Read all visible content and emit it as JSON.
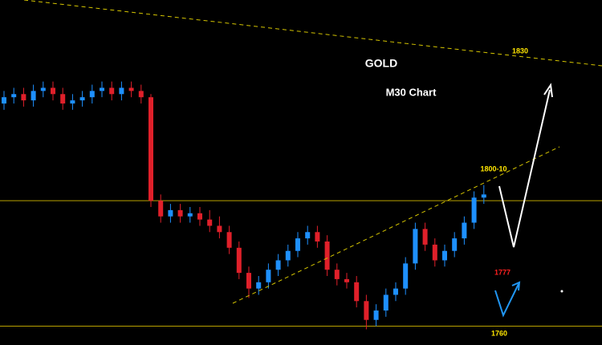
{
  "chart_data": {
    "type": "candlestick",
    "title": "GOLD",
    "subtitle": "M30 Chart",
    "ylim": [
      1754,
      1864
    ],
    "up_color": "#1e90ff",
    "down_color": "#e0202a",
    "hlines": [
      1800,
      1760
    ],
    "annotations": [
      "1830",
      "1800-10",
      "1777",
      "1760"
    ],
    "series": {
      "open": [
        1831,
        1833,
        1834,
        1832,
        1835,
        1836,
        1834,
        1831,
        1832,
        1833,
        1835,
        1836,
        1834,
        1836,
        1835,
        1833,
        1800,
        1795,
        1797,
        1795,
        1796,
        1794,
        1792,
        1790,
        1785,
        1777,
        1772,
        1774,
        1778,
        1781,
        1784,
        1788,
        1790,
        1787,
        1778,
        1775,
        1774,
        1768,
        1762,
        1765,
        1770,
        1772,
        1780,
        1791,
        1786,
        1781,
        1784,
        1788,
        1793,
        1801
      ],
      "high": [
        1835,
        1836,
        1836,
        1837,
        1838,
        1838,
        1836,
        1834,
        1835,
        1837,
        1838,
        1838,
        1838,
        1838,
        1837,
        1834,
        1802,
        1799,
        1799,
        1798,
        1798,
        1797,
        1795,
        1792,
        1787,
        1779,
        1776,
        1780,
        1783,
        1786,
        1790,
        1792,
        1792,
        1789,
        1780,
        1777,
        1776,
        1770,
        1767,
        1772,
        1774,
        1782,
        1793,
        1793,
        1788,
        1786,
        1790,
        1795,
        1803,
        1805
      ],
      "low": [
        1829,
        1831,
        1830,
        1830,
        1833,
        1832,
        1829,
        1829,
        1830,
        1831,
        1833,
        1832,
        1832,
        1833,
        1831,
        1798,
        1793,
        1793,
        1793,
        1793,
        1792,
        1790,
        1788,
        1783,
        1775,
        1769,
        1770,
        1772,
        1776,
        1779,
        1782,
        1786,
        1785,
        1776,
        1773,
        1772,
        1766,
        1759,
        1760,
        1763,
        1768,
        1770,
        1778,
        1784,
        1779,
        1779,
        1782,
        1786,
        1791,
        1799
      ],
      "close": [
        1833,
        1834,
        1832,
        1835,
        1836,
        1834,
        1831,
        1832,
        1833,
        1835,
        1836,
        1834,
        1836,
        1835,
        1833,
        1800,
        1795,
        1797,
        1795,
        1796,
        1794,
        1792,
        1790,
        1785,
        1777,
        1772,
        1774,
        1778,
        1781,
        1784,
        1788,
        1790,
        1787,
        1778,
        1775,
        1774,
        1768,
        1762,
        1765,
        1770,
        1772,
        1780,
        1791,
        1786,
        1781,
        1784,
        1788,
        1793,
        1801,
        1802
      ]
    }
  }
}
